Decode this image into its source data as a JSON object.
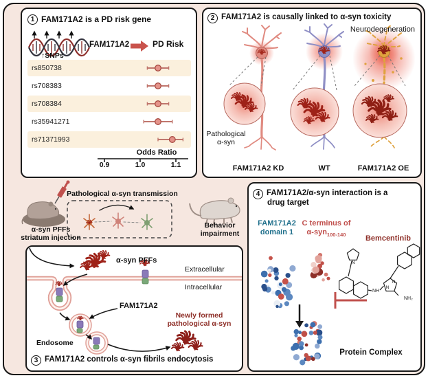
{
  "panel1": {
    "number": "1",
    "title": "FAM171A2 is a PD risk gene",
    "icons": {
      "up_arrow": "↑"
    },
    "snps_label": "SNPs",
    "gene_label": "FAM171A2",
    "risk_label": "PD Risk",
    "forest": {
      "type": "forest",
      "axis_label": "Odds Ratio",
      "ticks": [
        "0.9",
        "1.0",
        "1.1"
      ],
      "xlim": [
        0.88,
        1.14
      ],
      "rows": [
        {
          "name": "rs850738",
          "or": 1.05,
          "lo": 1.02,
          "hi": 1.08
        },
        {
          "name": "rs708383",
          "or": 1.05,
          "lo": 1.02,
          "hi": 1.08
        },
        {
          "name": "rs708384",
          "or": 1.05,
          "lo": 1.02,
          "hi": 1.08
        },
        {
          "name": "rs35941271",
          "or": 1.05,
          "lo": 1.01,
          "hi": 1.09
        },
        {
          "name": "rs71371993",
          "or": 1.09,
          "lo": 1.05,
          "hi": 1.12
        }
      ]
    }
  },
  "panel2": {
    "number": "2",
    "title": "FAM171A2 is causally linked to α-syn toxicity",
    "neurodegeneration_label": "Neurodegeneration",
    "pathological_line1": "Pathological",
    "pathological_line2": "α-syn",
    "groups": [
      "FAM171A2 KD",
      "WT",
      "FAM171A2 OE"
    ]
  },
  "mid": {
    "injection_line1": "α-syn PFFs",
    "injection_line2": "striatum injection",
    "transmission_label": "Pathological α-syn transmission",
    "behavior_line1": "Behavior",
    "behavior_line2": "impairment"
  },
  "panel3": {
    "number": "3",
    "title": "FAM171A2 controls α-syn fibrils endocytosis",
    "pffs_label": "α-syn PFFs",
    "extracellular_label": "Extracellular",
    "intracellular_label": "Intracellular",
    "receptor_label": "FAM171A2",
    "endosome_label": "Endosome",
    "newly_line1": "Newly formed",
    "newly_line2": "pathological α-syn"
  },
  "panel4": {
    "number": "4",
    "title_line1": "FAM171A2/α-syn interaction is a",
    "title_line2": "drug target",
    "domain_line1": "FAM171A2",
    "domain_line2": "domain 1",
    "cterm_line1": "C terminus of",
    "cterm_prefix": "α-syn",
    "cterm_sub": "100-140",
    "drug_label": "Bemcentinib",
    "complex_label": "Protein Complex",
    "atoms": {
      "n_pyrrolidine": "N",
      "nh": "NH",
      "n1": "N",
      "n2": "N",
      "nh2": "NH₂"
    }
  }
}
